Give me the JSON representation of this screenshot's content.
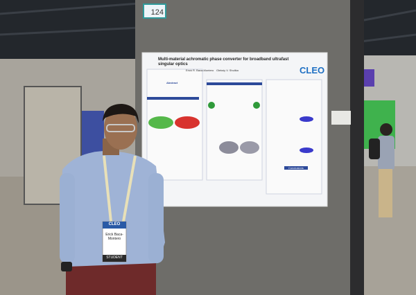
{
  "sign": {
    "number": "124"
  },
  "poster": {
    "title": "Multi-material achromatic phase converter for broadband ultrafast singular optics",
    "logo": "CLEO",
    "authors": [
      "Erick R. Baca-Montero",
      "Oleksiy V. Shulika"
    ],
    "sections": [
      "Abstract",
      "Conclusions"
    ]
  },
  "badge": {
    "event": "CLEO",
    "name": "Erick Baca-Montero",
    "role": "STUDENT"
  }
}
